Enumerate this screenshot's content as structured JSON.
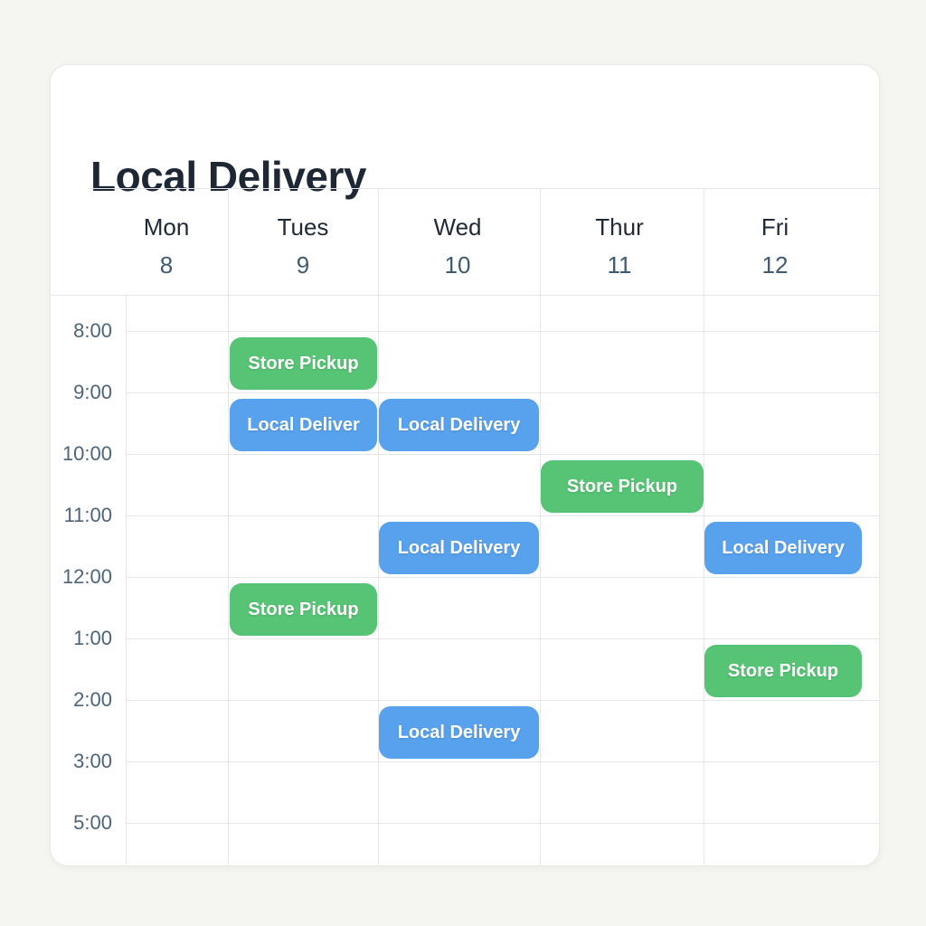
{
  "card": {
    "title": "Local Delivery"
  },
  "calendar": {
    "days": [
      {
        "name": "Mon",
        "number": "8"
      },
      {
        "name": "Tues",
        "number": "9"
      },
      {
        "name": "Wed",
        "number": "10"
      },
      {
        "name": "Thur",
        "number": "11"
      },
      {
        "name": "Fri",
        "number": "12"
      }
    ],
    "times": [
      "8:00",
      "9:00",
      "10:00",
      "11:00",
      "12:00",
      "1:00",
      "2:00",
      "3:00",
      "5:00"
    ],
    "events": [
      {
        "day": "Tues",
        "time": "8:00",
        "label": "Store Pickup",
        "type": "pickup"
      },
      {
        "day": "Tues",
        "time": "9:00",
        "label": "Local Deliver",
        "type": "delivery"
      },
      {
        "day": "Wed",
        "time": "9:00",
        "label": "Local Delivery",
        "type": "delivery"
      },
      {
        "day": "Thur",
        "time": "10:00",
        "label": "Store Pickup",
        "type": "pickup"
      },
      {
        "day": "Wed",
        "time": "11:00",
        "label": "Local Delivery",
        "type": "delivery"
      },
      {
        "day": "Fri",
        "time": "11:00",
        "label": "Local Delivery",
        "type": "delivery"
      },
      {
        "day": "Tues",
        "time": "12:00",
        "label": "Store Pickup",
        "type": "pickup"
      },
      {
        "day": "Fri",
        "time": "1:00",
        "label": "Store Pickup",
        "type": "pickup"
      },
      {
        "day": "Wed",
        "time": "2:00",
        "label": "Local Delivery",
        "type": "delivery"
      }
    ],
    "colors": {
      "pickup": "#57c375",
      "delivery": "#58a1ec",
      "grid_line": "#e4e6e9",
      "title": "#1d2834",
      "day_name": "#1f2a36",
      "day_number": "#3e5a74",
      "time_label": "#4b647c",
      "event_text": "#ffffff",
      "page_background": "#f5f5f2"
    }
  }
}
